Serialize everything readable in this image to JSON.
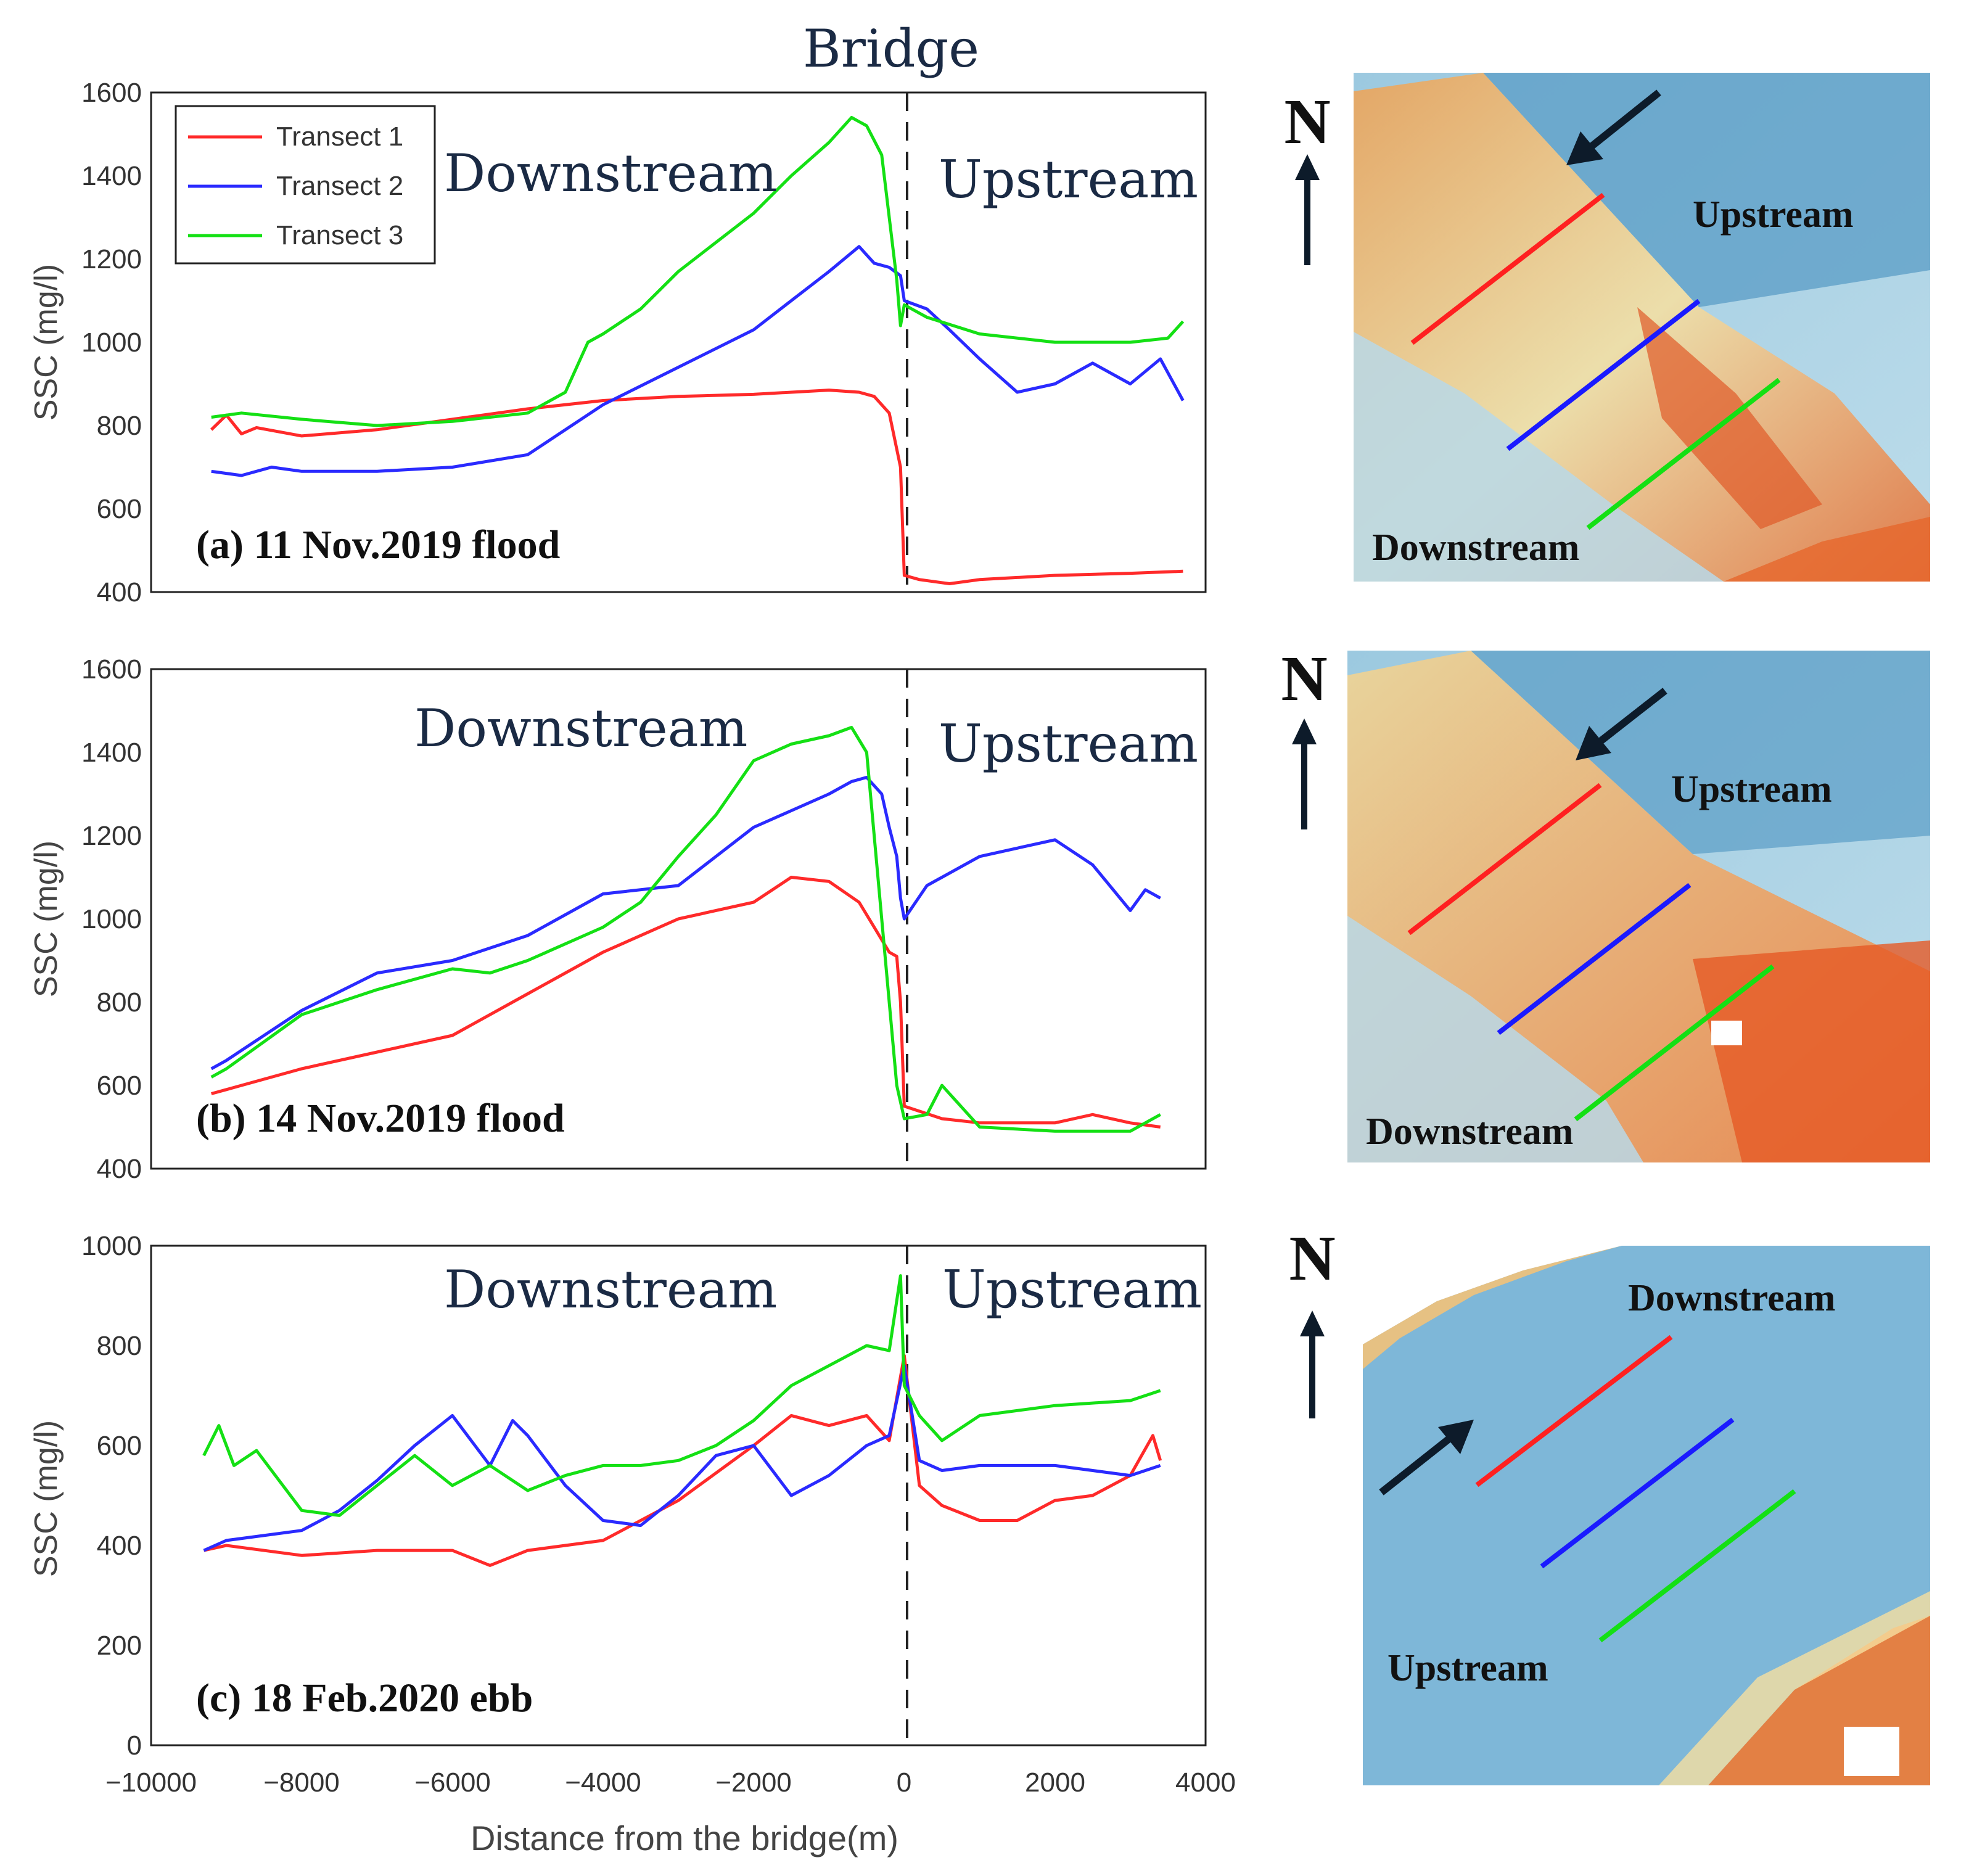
{
  "bridge_label": "Bridge",
  "x_axis_label": "Distance from the bridge(m)",
  "x_tick_labels": [
    "−10000",
    "−8000",
    "−6000",
    "−4000",
    "−2000",
    "0",
    "2000",
    "4000"
  ],
  "colors": {
    "transect1": "#ff2a2a",
    "transect2": "#2a2aff",
    "transect3": "#14e014",
    "arrow": "#0d1b2a"
  },
  "legend": [
    "Transect 1",
    "Transect 2",
    "Transect 3"
  ],
  "panels": [
    {
      "caption": "(a) 11 Nov.2019 flood",
      "ylabel": "SSC (mg/l)",
      "yticks": [
        "1600",
        "1400",
        "1200",
        "1000",
        "800",
        "600",
        "400"
      ],
      "downstream": "Downstream",
      "upstream": "Upstream",
      "map": {
        "north": "N",
        "label_a": "Upstream",
        "label_b": "Downstream"
      }
    },
    {
      "caption": "(b) 14 Nov.2019 flood",
      "ylabel": "SSC (mg/l)",
      "yticks": [
        "1600",
        "1400",
        "1200",
        "1000",
        "800",
        "600",
        "400"
      ],
      "downstream": "Downstream",
      "upstream": "Upstream",
      "map": {
        "north": "N",
        "label_a": "Upstream",
        "label_b": "Downstream"
      }
    },
    {
      "caption": "(c) 18 Feb.2020 ebb",
      "ylabel": "SSC (mg/l)",
      "yticks": [
        "1000",
        "800",
        "600",
        "400",
        "200",
        "0"
      ],
      "downstream": "Downstream",
      "upstream": "Upstream",
      "map": {
        "north": "N",
        "label_a": "Downstream",
        "label_b": "Upstream"
      }
    }
  ],
  "chart_data": [
    {
      "type": "line",
      "title": "(a) 11 Nov.2019 flood",
      "xlabel": "Distance from the bridge(m)",
      "ylabel": "SSC (mg/l)",
      "xlim": [
        -10000,
        4000
      ],
      "ylim": [
        400,
        1600
      ],
      "divider_x": 0,
      "series": [
        {
          "name": "Transect 1",
          "x": [
            -9200,
            -9000,
            -8800,
            -8600,
            -8000,
            -7000,
            -6000,
            -5000,
            -4000,
            -3000,
            -2000,
            -1000,
            -600,
            -400,
            -200,
            -50,
            0,
            200,
            600,
            1000,
            2000,
            3000,
            3700
          ],
          "y": [
            790,
            825,
            780,
            795,
            775,
            790,
            815,
            840,
            860,
            870,
            875,
            885,
            880,
            870,
            830,
            700,
            440,
            430,
            420,
            430,
            440,
            445,
            450
          ]
        },
        {
          "name": "Transect 2",
          "x": [
            -9200,
            -8800,
            -8400,
            -8000,
            -7000,
            -6000,
            -5000,
            -4000,
            -3000,
            -2000,
            -1500,
            -1000,
            -600,
            -400,
            -200,
            -50,
            0,
            300,
            600,
            1000,
            1500,
            2000,
            2500,
            3000,
            3400,
            3700
          ],
          "y": [
            690,
            680,
            700,
            690,
            690,
            700,
            730,
            850,
            940,
            1030,
            1100,
            1170,
            1230,
            1190,
            1180,
            1160,
            1100,
            1080,
            1030,
            960,
            880,
            900,
            950,
            900,
            960,
            860
          ]
        },
        {
          "name": "Transect 3",
          "x": [
            -9200,
            -8800,
            -8000,
            -7000,
            -6000,
            -5000,
            -4500,
            -4200,
            -4000,
            -3500,
            -3000,
            -2500,
            -2000,
            -1500,
            -1000,
            -700,
            -500,
            -300,
            -200,
            -100,
            -50,
            0,
            300,
            1000,
            2000,
            3000,
            3500,
            3700
          ],
          "y": [
            820,
            830,
            815,
            800,
            810,
            830,
            880,
            1000,
            1020,
            1080,
            1170,
            1240,
            1310,
            1400,
            1480,
            1540,
            1520,
            1450,
            1300,
            1150,
            1040,
            1090,
            1060,
            1020,
            1000,
            1000,
            1010,
            1050
          ]
        }
      ]
    },
    {
      "type": "line",
      "title": "(b) 14 Nov.2019 flood",
      "xlabel": "Distance from the bridge(m)",
      "ylabel": "SSC (mg/l)",
      "xlim": [
        -10000,
        4000
      ],
      "ylim": [
        400,
        1600
      ],
      "divider_x": 0,
      "series": [
        {
          "name": "Transect 1",
          "x": [
            -9200,
            -9000,
            -8000,
            -7000,
            -6000,
            -5000,
            -4000,
            -3000,
            -2000,
            -1500,
            -1000,
            -600,
            -400,
            -200,
            -100,
            -50,
            0,
            500,
            1000,
            2000,
            2500,
            3000,
            3400
          ],
          "y": [
            580,
            590,
            640,
            680,
            720,
            820,
            920,
            1000,
            1040,
            1100,
            1090,
            1040,
            980,
            920,
            910,
            800,
            550,
            520,
            510,
            510,
            530,
            510,
            500
          ]
        },
        {
          "name": "Transect 2",
          "x": [
            -9200,
            -9000,
            -8000,
            -7000,
            -6000,
            -5000,
            -4000,
            -3000,
            -2000,
            -1500,
            -1000,
            -700,
            -500,
            -300,
            -200,
            -100,
            -50,
            0,
            300,
            1000,
            1500,
            2000,
            2500,
            3000,
            3200,
            3400
          ],
          "y": [
            640,
            660,
            780,
            870,
            900,
            960,
            1060,
            1080,
            1220,
            1260,
            1300,
            1330,
            1340,
            1300,
            1220,
            1150,
            1050,
            1000,
            1080,
            1150,
            1170,
            1190,
            1130,
            1020,
            1070,
            1050
          ]
        },
        {
          "name": "Transect 3",
          "x": [
            -9200,
            -9000,
            -8000,
            -7000,
            -6000,
            -5500,
            -5000,
            -4000,
            -3500,
            -3000,
            -2500,
            -2000,
            -1500,
            -1000,
            -700,
            -500,
            -300,
            -200,
            -100,
            0,
            300,
            500,
            1000,
            2000,
            3000,
            3400
          ],
          "y": [
            620,
            640,
            770,
            830,
            880,
            870,
            900,
            980,
            1040,
            1150,
            1250,
            1380,
            1420,
            1440,
            1460,
            1400,
            1000,
            800,
            600,
            520,
            530,
            600,
            500,
            490,
            490,
            530
          ]
        }
      ]
    },
    {
      "type": "line",
      "title": "(c) 18 Feb.2020 ebb",
      "xlabel": "Distance from the bridge(m)",
      "ylabel": "SSC (mg/l)",
      "xlim": [
        -10000,
        4000
      ],
      "ylim": [
        0,
        1000
      ],
      "divider_x": 0,
      "series": [
        {
          "name": "Transect 1",
          "x": [
            -9300,
            -9000,
            -8000,
            -7000,
            -6000,
            -5500,
            -5000,
            -4000,
            -3000,
            -2000,
            -1500,
            -1000,
            -500,
            -200,
            0,
            200,
            500,
            1000,
            1500,
            2000,
            2500,
            3000,
            3300,
            3400
          ],
          "y": [
            390,
            400,
            380,
            390,
            390,
            360,
            390,
            410,
            490,
            600,
            660,
            640,
            660,
            610,
            780,
            520,
            480,
            450,
            450,
            490,
            500,
            540,
            620,
            570
          ]
        },
        {
          "name": "Transect 2",
          "x": [
            -9300,
            -9000,
            -8000,
            -7500,
            -7000,
            -6500,
            -6000,
            -5500,
            -5200,
            -5000,
            -4500,
            -4000,
            -3500,
            -3000,
            -2500,
            -2000,
            -1500,
            -1000,
            -500,
            -200,
            0,
            200,
            500,
            1000,
            2000,
            3000,
            3400
          ],
          "y": [
            390,
            410,
            430,
            470,
            530,
            600,
            660,
            560,
            650,
            620,
            520,
            450,
            440,
            500,
            580,
            600,
            500,
            540,
            600,
            620,
            760,
            570,
            550,
            560,
            560,
            540,
            560
          ]
        },
        {
          "name": "Transect 3",
          "x": [
            -9300,
            -9100,
            -8900,
            -8600,
            -8000,
            -7500,
            -7000,
            -6500,
            -6000,
            -5500,
            -5000,
            -4500,
            -4000,
            -3500,
            -3000,
            -2500,
            -2000,
            -1500,
            -1000,
            -500,
            -200,
            -50,
            0,
            200,
            500,
            1000,
            2000,
            3000,
            3400
          ],
          "y": [
            580,
            640,
            560,
            590,
            470,
            460,
            520,
            580,
            520,
            560,
            510,
            540,
            560,
            560,
            570,
            600,
            650,
            720,
            760,
            800,
            790,
            940,
            720,
            660,
            610,
            660,
            680,
            690,
            710
          ]
        }
      ]
    }
  ]
}
